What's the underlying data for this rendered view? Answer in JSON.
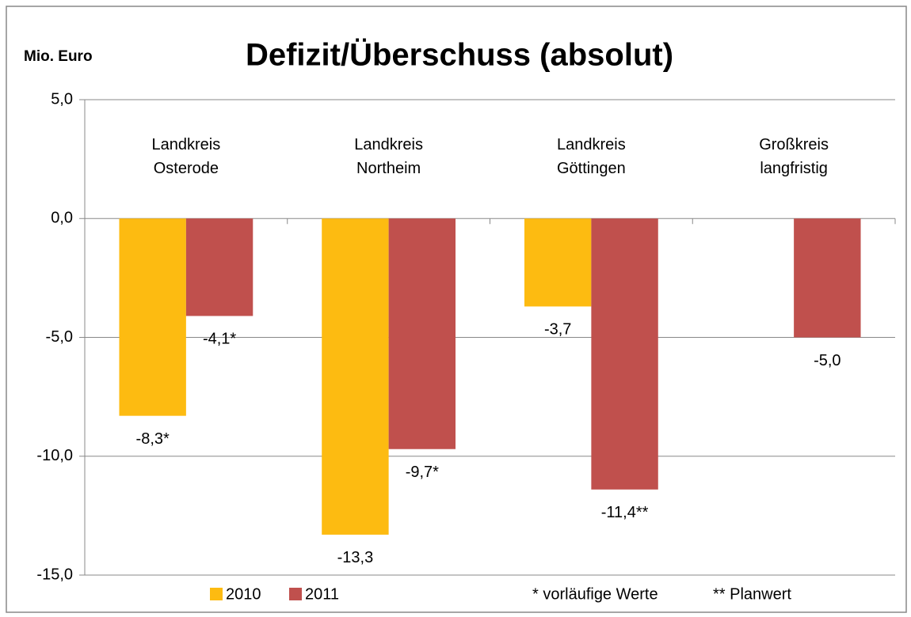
{
  "chart_data": {
    "type": "bar",
    "title": "Defizit/Überschuss (absolut)",
    "y_axis_label": "Mio. Euro",
    "categories": [
      "Landkreis\nOsterode",
      "Landkreis\nNortheim",
      "Landkreis\nGöttingen",
      "Großkreis\nlangfristig"
    ],
    "series": [
      {
        "name": "2010",
        "color": "#fdbb11",
        "values": [
          -8.3,
          -13.3,
          -3.7,
          null
        ],
        "value_labels": [
          "-8,3*",
          "-13,3",
          "-3,7",
          null
        ]
      },
      {
        "name": "2011",
        "color": "#c0504d",
        "values": [
          -4.1,
          -9.7,
          -11.4,
          -5.0
        ],
        "value_labels": [
          "-4,1*",
          "-9,7*",
          "-11,4**",
          "-5,0"
        ]
      }
    ],
    "ylim": [
      -15,
      5
    ],
    "yticks": [
      {
        "value": 5,
        "label": "5,0"
      },
      {
        "value": 0,
        "label": "0,0"
      },
      {
        "value": -5,
        "label": "-5,0"
      },
      {
        "value": -10,
        "label": "-10,0"
      },
      {
        "value": -15,
        "label": "-15,0"
      }
    ],
    "grid": true,
    "legend": "bottom",
    "annotations": [
      "* vorläufige Werte",
      "** Planwert"
    ]
  }
}
